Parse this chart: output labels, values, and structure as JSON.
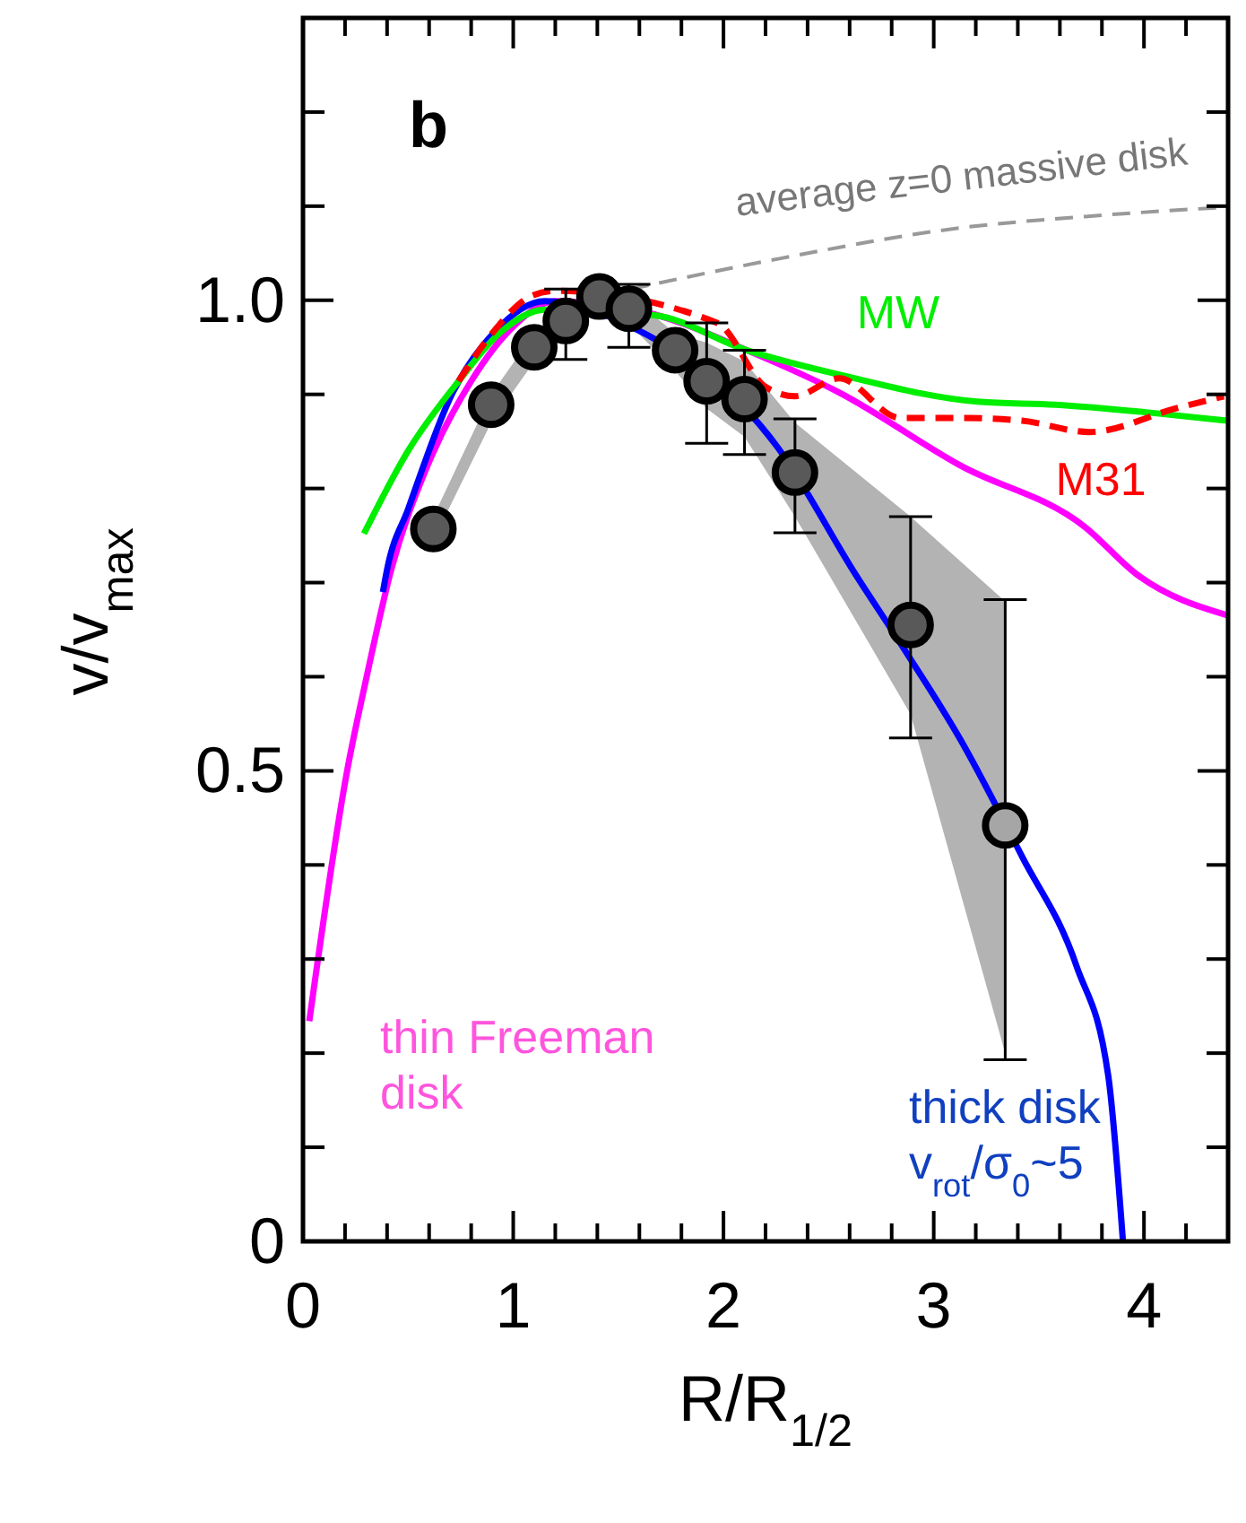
{
  "chart_data": {
    "type": "line",
    "xlabel": "R/R$_{1/2}$",
    "ylabel": "v/v$_{max}$",
    "annotations": [
      "b"
    ],
    "xlim": [
      0,
      4.4
    ],
    "ylim": [
      0,
      1.3
    ],
    "xticks": [
      0,
      {
        "value": 0.2,
        "label": null
      },
      {
        "value": 0.4,
        "label": null
      },
      {
        "value": 0.6,
        "label": null
      },
      {
        "value": 0.8,
        "label": null
      },
      1,
      {
        "value": 1.2,
        "label": null
      },
      {
        "value": 1.4,
        "label": null
      },
      {
        "value": 1.6,
        "label": null
      },
      {
        "value": 1.8,
        "label": null
      },
      2,
      {
        "value": 2.2,
        "label": null
      },
      {
        "value": 2.4,
        "label": null
      },
      {
        "value": 2.6,
        "label": null
      },
      {
        "value": 2.8,
        "label": null
      },
      3,
      {
        "value": 3.2,
        "label": null
      },
      {
        "value": 3.4,
        "label": null
      },
      {
        "value": 3.6,
        "label": null
      },
      {
        "value": 3.8,
        "label": null
      },
      4,
      {
        "value": 4.2,
        "label": null
      },
      {
        "value": 4.4,
        "label": null
      }
    ],
    "yticks": [
      0,
      {
        "value": 0.1,
        "label": null
      },
      {
        "value": 0.2,
        "label": null
      },
      {
        "value": 0.3,
        "label": null
      },
      {
        "value": 0.4,
        "label": null
      },
      {
        "value": 0.5,
        "label": "0.5"
      },
      {
        "value": 0.6,
        "label": null
      },
      {
        "value": 0.7,
        "label": null
      },
      {
        "value": 0.8,
        "label": null
      },
      {
        "value": 0.9,
        "label": null
      },
      {
        "value": 1.0,
        "label": "1.0"
      },
      {
        "value": 1.1,
        "label": null
      },
      {
        "value": 1.2,
        "label": null
      }
    ],
    "grid": false,
    "series": [
      {
        "type": "scatter",
        "marker": "circle",
        "x": [
          0.62,
          0.895,
          1.1,
          1.25,
          1.41,
          1.55,
          1.77,
          1.92,
          2.1,
          2.34,
          2.89,
          3.34
        ],
        "values": [
          0.757,
          0.889,
          0.95,
          0.978,
          1.004,
          0.991,
          0.947,
          0.914,
          0.895,
          0.817,
          0.655,
          0.442
        ],
        "colors": [
          "#595959",
          "#595959",
          "#595959",
          "#595959",
          "#595959",
          "#595959",
          "#595959",
          "#595959",
          "#595959",
          "#595959",
          "#595959",
          "#a6a6a6"
        ],
        "errors": [
          null,
          null,
          null,
          [
            0.937,
            1.012
          ],
          null,
          [
            0.95,
            1.017
          ],
          null,
          [
            0.848,
            0.976
          ],
          [
            0.836,
            0.947
          ],
          [
            0.753,
            0.874
          ],
          [
            0.535,
            0.77
          ],
          [
            0.193,
            0.682
          ]
        ],
        "lower": [
          0.745,
          0.87,
          0.935,
          0.96,
          0.99,
          0.975,
          0.925,
          0.885,
          0.855,
          0.77,
          0.56,
          0.2
        ],
        "upper": [
          0.77,
          0.9,
          0.965,
          0.99,
          1.015,
          1.005,
          0.965,
          0.955,
          0.935,
          0.87,
          0.77,
          0.68
        ]
      },
      {
        "name": "thin Freeman\ndisk",
        "color": "#ff00ff",
        "line_style": "solid",
        "x": [
          0.03,
          0.21,
          0.3,
          0.42,
          0.59,
          0.8,
          1.0,
          1.2,
          1.41,
          1.67,
          2.11,
          2.55,
          3.13,
          3.72,
          3.97,
          4.4
        ],
        "values": [
          0.234,
          0.5,
          0.597,
          0.714,
          0.823,
          0.914,
          0.972,
          0.999,
          null,
          0.985,
          0.947,
          0.902,
          0.824,
          0.759,
          0.708,
          0.665
        ]
      },
      {
        "name": "thick disk\nv$_{rot}$/σ$_{0}$~5",
        "color": "#0000ff",
        "line_style": "solid",
        "x": [
          0.38,
          0.4,
          0.5,
          0.71,
          0.91,
          1.15,
          1.38,
          1.56,
          1.97,
          2.26,
          2.63,
          2.84,
          3.13,
          3.42,
          3.68,
          3.83,
          3.9
        ],
        "values": [
          0.69,
          0.714,
          0.778,
          0.901,
          0.966,
          0.999,
          null,
          0.972,
          null,
          0.843,
          0.708,
          0.636,
          0.532,
          0.409,
          0.292,
          0.176,
          0.0
        ]
      },
      {
        "name": "MW",
        "color": "#00ee00",
        "line_style": "solid",
        "x": [
          0.29,
          0.5,
          0.74,
          0.94,
          1.15,
          1.4,
          1.67,
          2.11,
          2.55,
          3.22,
          3.58,
          4.01,
          4.4
        ],
        "values": [
          0.752,
          0.84,
          0.914,
          0.966,
          0.99,
          null,
          0.984,
          0.947,
          0.921,
          0.892,
          0.889,
          0.881,
          0.872
        ]
      },
      {
        "name": "M31",
        "color": "#ff0000",
        "line_style": "dashed",
        "x": [
          0.74,
          0.9,
          1.09,
          1.2,
          1.56,
          1.97,
          2.2,
          2.34,
          2.55,
          2.84,
          3.13,
          3.42,
          3.74,
          4.15,
          4.38
        ],
        "values": [
          0.914,
          0.965,
          1.005,
          1.01,
          null,
          0.976,
          0.908,
          0.898,
          0.917,
          0.875,
          0.875,
          0.872,
          0.86,
          0.885,
          0.898
        ]
      },
      {
        "name": "average z=0 massive disk",
        "color": "#999999",
        "line_style": "dashed",
        "x": [
          1.56,
          2.26,
          3.13,
          3.72,
          4.4
        ],
        "values": [
          1.012,
          1.044,
          1.077,
          1.089,
          1.099
        ]
      }
    ]
  }
}
